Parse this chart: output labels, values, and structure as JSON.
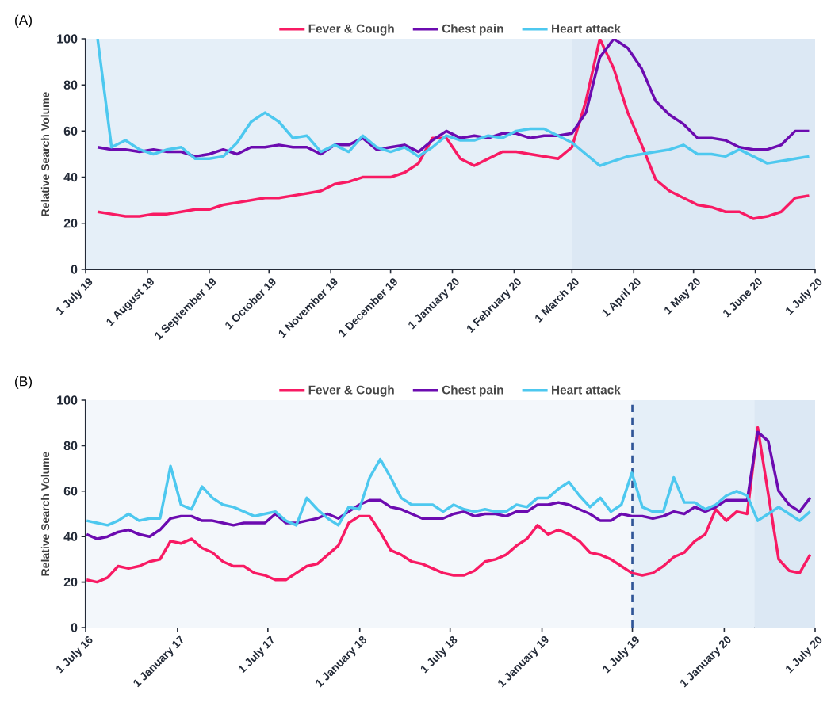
{
  "chart_data": [
    {
      "type": "line",
      "title": "(A)",
      "ylabel": "Relative Search Volume",
      "x": [
        "2019-07-07",
        "2019-07-14",
        "2019-07-21",
        "2019-07-28",
        "2019-08-04",
        "2019-08-11",
        "2019-08-18",
        "2019-08-25",
        "2019-09-01",
        "2019-09-08",
        "2019-09-15",
        "2019-09-22",
        "2019-09-29",
        "2019-10-06",
        "2019-10-13",
        "2019-10-20",
        "2019-10-27",
        "2019-11-03",
        "2019-11-10",
        "2019-11-17",
        "2019-11-24",
        "2019-12-01",
        "2019-12-08",
        "2019-12-15",
        "2019-12-22",
        "2019-12-29",
        "2020-01-05",
        "2020-01-12",
        "2020-01-19",
        "2020-01-26",
        "2020-02-02",
        "2020-02-09",
        "2020-02-16",
        "2020-02-23",
        "2020-03-01",
        "2020-03-08",
        "2020-03-15",
        "2020-03-22",
        "2020-03-29",
        "2020-04-05",
        "2020-04-12",
        "2020-04-19",
        "2020-04-26",
        "2020-05-03",
        "2020-05-10",
        "2020-05-17",
        "2020-05-24",
        "2020-05-31",
        "2020-06-07",
        "2020-06-14",
        "2020-06-21",
        "2020-06-28"
      ],
      "series": [
        {
          "name": "Fever & Cough",
          "color": "#f81a63",
          "values": [
            25,
            24,
            23,
            23,
            24,
            24,
            25,
            26,
            26,
            28,
            29,
            30,
            31,
            31,
            32,
            33,
            34,
            37,
            38,
            40,
            40,
            40,
            42,
            46,
            57,
            57,
            48,
            45,
            48,
            51,
            51,
            50,
            49,
            48,
            53,
            73,
            100,
            87,
            68,
            54,
            39,
            34,
            31,
            28,
            27,
            25,
            25,
            22,
            23,
            25,
            31,
            32
          ]
        },
        {
          "name": "Chest pain",
          "color": "#6c0bb0",
          "values": [
            53,
            52,
            52,
            51,
            52,
            51,
            51,
            49,
            50,
            52,
            50,
            53,
            53,
            54,
            53,
            53,
            50,
            54,
            54,
            57,
            52,
            53,
            54,
            51,
            56,
            60,
            57,
            58,
            57,
            59,
            59,
            57,
            58,
            58,
            59,
            68,
            92,
            100,
            96,
            87,
            73,
            67,
            63,
            57,
            57,
            56,
            53,
            52,
            52,
            54,
            60,
            60
          ]
        },
        {
          "name": "Heart attack",
          "color": "#4dc8ef",
          "values": [
            100,
            53,
            56,
            52,
            50,
            52,
            53,
            48,
            48,
            49,
            55,
            64,
            68,
            64,
            57,
            58,
            51,
            54,
            51,
            58,
            53,
            51,
            53,
            49,
            53,
            58,
            56,
            56,
            58,
            57,
            60,
            61,
            61,
            58,
            55,
            50,
            45,
            47,
            49,
            50,
            51,
            52,
            54,
            50,
            50,
            49,
            52,
            49,
            46,
            47,
            48,
            49
          ]
        }
      ],
      "xlim": [
        "2019-07-01",
        "2020-07-01"
      ],
      "xticks": [
        {
          "value": "2019-07-01",
          "label": "1 July 19"
        },
        {
          "value": "2019-08-01",
          "label": "1 August 19"
        },
        {
          "value": "2019-09-01",
          "label": "1 September 19"
        },
        {
          "value": "2019-10-01",
          "label": "1 October 19"
        },
        {
          "value": "2019-11-01",
          "label": "1 November 19"
        },
        {
          "value": "2019-12-01",
          "label": "1 December 19"
        },
        {
          "value": "2020-01-01",
          "label": "1 January 20"
        },
        {
          "value": "2020-02-01",
          "label": "1 February 20"
        },
        {
          "value": "2020-03-01",
          "label": "1 March 20"
        },
        {
          "value": "2020-04-01",
          "label": "1 April 20"
        },
        {
          "value": "2020-05-01",
          "label": "1 May 20"
        },
        {
          "value": "2020-06-01",
          "label": "1 June 20"
        },
        {
          "value": "2020-07-01",
          "label": "1 July 20"
        }
      ],
      "ylim": [
        0,
        100
      ],
      "yticks": [
        0,
        20,
        40,
        60,
        80,
        100
      ],
      "bands": [
        {
          "axis": "x",
          "from": "2019-07-01",
          "to": "2020-03-01",
          "color": "#e5eff8"
        },
        {
          "axis": "x",
          "from": "2020-03-01",
          "to": "2020-07-01",
          "color": "#dce8f4"
        }
      ],
      "legend": "top"
    },
    {
      "type": "line",
      "title": "(B)",
      "ylabel": "Relative Search Volume",
      "x": [
        "2016-07-03",
        "2016-07-24",
        "2016-08-14",
        "2016-09-04",
        "2016-09-25",
        "2016-10-16",
        "2016-11-06",
        "2016-11-27",
        "2016-12-18",
        "2017-01-08",
        "2017-01-29",
        "2017-02-19",
        "2017-03-12",
        "2017-04-02",
        "2017-04-23",
        "2017-05-14",
        "2017-06-04",
        "2017-06-25",
        "2017-07-16",
        "2017-08-06",
        "2017-08-27",
        "2017-09-17",
        "2017-10-08",
        "2017-10-29",
        "2017-11-19",
        "2017-12-10",
        "2017-12-31",
        "2018-01-21",
        "2018-02-11",
        "2018-03-04",
        "2018-03-25",
        "2018-04-15",
        "2018-05-06",
        "2018-05-27",
        "2018-06-17",
        "2018-07-08",
        "2018-07-29",
        "2018-08-19",
        "2018-09-09",
        "2018-09-30",
        "2018-10-21",
        "2018-11-11",
        "2018-12-02",
        "2018-12-23",
        "2019-01-13",
        "2019-02-03",
        "2019-02-24",
        "2019-03-17",
        "2019-04-07",
        "2019-04-28",
        "2019-05-19",
        "2019-06-09",
        "2019-06-30",
        "2019-07-21",
        "2019-08-11",
        "2019-09-01",
        "2019-09-22",
        "2019-10-13",
        "2019-11-03",
        "2019-11-24",
        "2019-12-15",
        "2020-01-05",
        "2020-01-26",
        "2020-02-16",
        "2020-03-08",
        "2020-03-29",
        "2020-04-19",
        "2020-05-10",
        "2020-05-31",
        "2020-06-21"
      ],
      "series": [
        {
          "name": "Fever & Cough",
          "color": "#f81a63",
          "values": [
            21,
            20,
            22,
            27,
            26,
            27,
            29,
            30,
            38,
            37,
            39,
            35,
            33,
            29,
            27,
            27,
            24,
            23,
            21,
            21,
            24,
            27,
            28,
            32,
            36,
            46,
            49,
            49,
            42,
            34,
            32,
            29,
            28,
            26,
            24,
            23,
            23,
            25,
            29,
            30,
            32,
            36,
            39,
            45,
            41,
            43,
            41,
            38,
            33,
            32,
            30,
            27,
            24,
            23,
            24,
            27,
            31,
            33,
            38,
            41,
            52,
            47,
            51,
            50,
            88,
            59,
            30,
            25,
            24,
            32
          ]
        },
        {
          "name": "Chest pain",
          "color": "#6c0bb0",
          "values": [
            41,
            39,
            40,
            42,
            43,
            41,
            40,
            43,
            48,
            49,
            49,
            47,
            47,
            46,
            45,
            46,
            46,
            46,
            50,
            46,
            46,
            47,
            48,
            50,
            48,
            51,
            54,
            56,
            56,
            53,
            52,
            50,
            48,
            48,
            48,
            50,
            51,
            49,
            50,
            50,
            49,
            51,
            51,
            54,
            54,
            55,
            54,
            52,
            50,
            47,
            47,
            50,
            49,
            49,
            48,
            49,
            51,
            50,
            53,
            51,
            53,
            56,
            56,
            56,
            86,
            82,
            60,
            54,
            51,
            57
          ]
        },
        {
          "name": "Heart attack",
          "color": "#4dc8ef",
          "values": [
            47,
            46,
            45,
            47,
            50,
            47,
            48,
            48,
            71,
            54,
            52,
            62,
            57,
            54,
            53,
            51,
            49,
            50,
            51,
            47,
            45,
            57,
            52,
            48,
            45,
            53,
            52,
            66,
            74,
            66,
            57,
            54,
            54,
            54,
            51,
            54,
            52,
            51,
            52,
            51,
            51,
            54,
            53,
            57,
            57,
            61,
            64,
            58,
            53,
            57,
            51,
            54,
            68,
            53,
            51,
            51,
            66,
            55,
            55,
            52,
            54,
            58,
            60,
            58,
            47,
            50,
            53,
            50,
            47,
            51
          ]
        }
      ],
      "xlim": [
        "2016-07-01",
        "2020-07-01"
      ],
      "xticks": [
        {
          "value": "2016-07-01",
          "label": "1 July 16"
        },
        {
          "value": "2017-01-01",
          "label": "1 January 17"
        },
        {
          "value": "2017-07-01",
          "label": "1 July 17"
        },
        {
          "value": "2018-01-01",
          "label": "1 January 18"
        },
        {
          "value": "2018-07-01",
          "label": "1 July 18"
        },
        {
          "value": "2019-01-01",
          "label": "1 January 19"
        },
        {
          "value": "2019-07-01",
          "label": "1 July 19"
        },
        {
          "value": "2020-01-01",
          "label": "1 January 20"
        },
        {
          "value": "2020-07-01",
          "label": "1 July 20"
        }
      ],
      "ylim": [
        0,
        100
      ],
      "yticks": [
        0,
        20,
        40,
        60,
        80,
        100
      ],
      "bands": [
        {
          "axis": "x",
          "from": "2016-07-01",
          "to": "2019-07-01",
          "color": "#f3f7fb"
        },
        {
          "axis": "x",
          "from": "2019-07-01",
          "to": "2020-03-01",
          "color": "#e5eff8"
        },
        {
          "axis": "x",
          "from": "2020-03-01",
          "to": "2020-07-01",
          "color": "#dce8f4"
        }
      ],
      "ref_lines": [
        {
          "axis": "x",
          "value": "2019-07-01",
          "color": "#2f5597",
          "line_style": "dashed"
        }
      ],
      "legend": "top"
    }
  ]
}
